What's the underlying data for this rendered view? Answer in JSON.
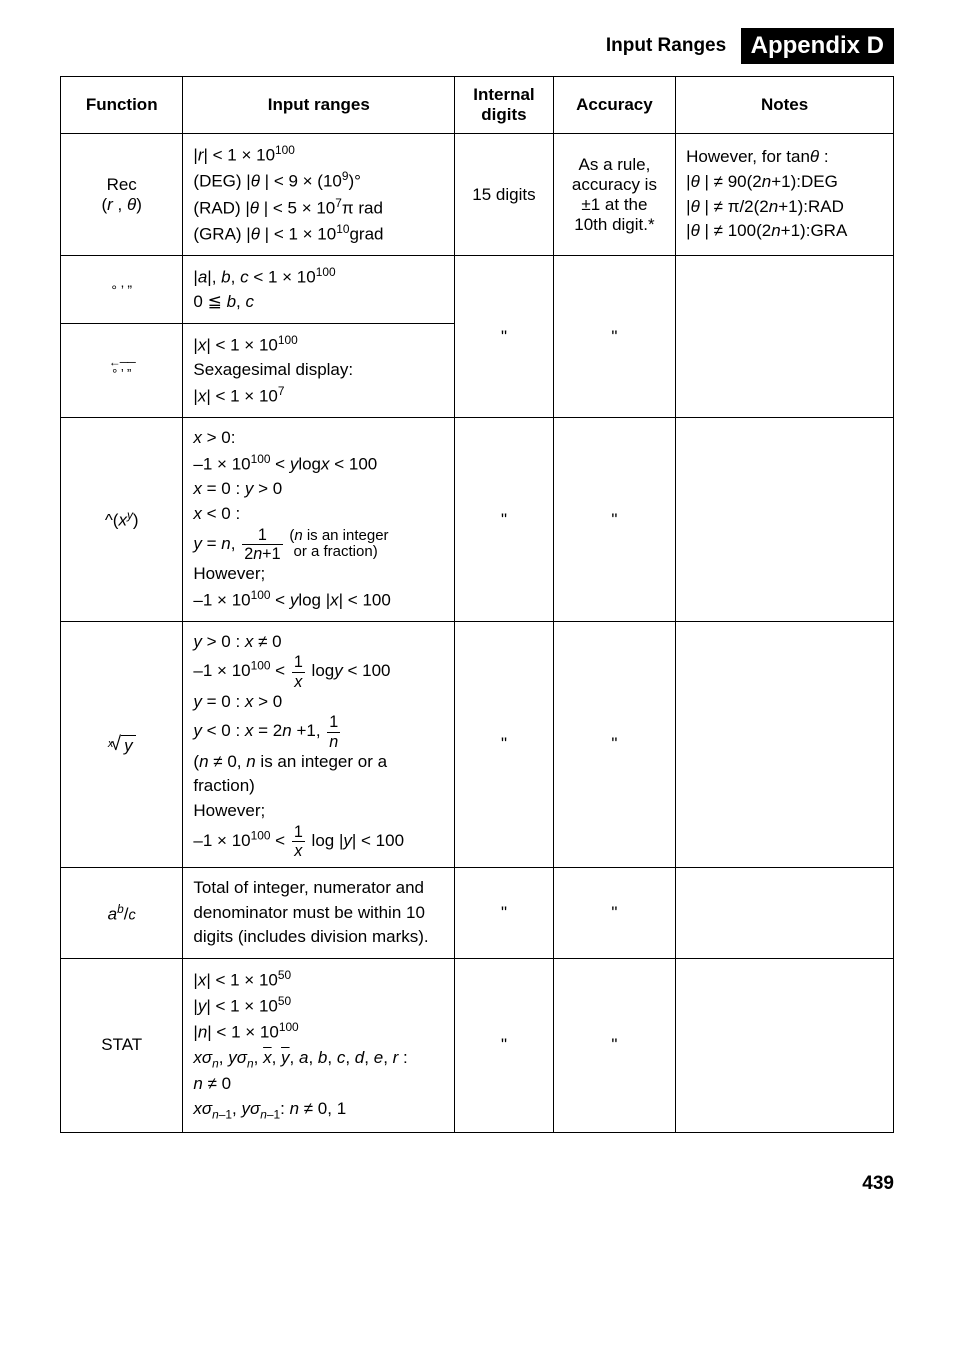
{
  "header": {
    "section_label": "Input Ranges",
    "appendix": "Appendix D"
  },
  "columns": {
    "c1": "Function",
    "c2": "Input ranges",
    "c3_line1": "Internal",
    "c3_line2": "digits",
    "c4": "Accuracy",
    "c5": "Notes"
  },
  "rows": {
    "rec": {
      "fn_line1": "Rec",
      "fn_line2_open": "(",
      "fn_line2_r": "r",
      "fn_line2_comma": " , ",
      "fn_line2_theta": "θ",
      "fn_line2_close": ")",
      "ranges": {
        "l1_a": "|",
        "l1_r": "r",
        "l1_b": "| < 1 × 10",
        "l1_exp": "100",
        "l2_a": "(DEG) |",
        "l2_th": "θ",
        "l2_b": " | < 9 × (10",
        "l2_exp": "9",
        "l2_c": ")°",
        "l3_a": "(RAD) |",
        "l3_th": "θ",
        "l3_b": " | < 5 × 10",
        "l3_exp": "7",
        "l3_c": "π rad",
        "l4_a": "(GRA) |",
        "l4_th": "θ",
        "l4_b": " | < 1 × 10",
        "l4_exp": "10",
        "l4_c": "grad"
      },
      "digits": "15 digits",
      "accuracy": {
        "l1": "As a rule,",
        "l2": "accuracy is",
        "l3": "±1 at the",
        "l4": "10th digit.*"
      },
      "notes": {
        "l1_a": "However, for tan",
        "l1_th": "θ",
        "l1_b": " :",
        "l2_a": "|",
        "l2_th": "θ",
        "l2_b": " | ≠ 90(2",
        "l2_n": "n",
        "l2_c": "+1):DEG",
        "l3_a": "|",
        "l3_th": "θ",
        "l3_b": " | ≠ π/2(2",
        "l3_n": "n",
        "l3_c": "+1):RAD",
        "l4_a": "|",
        "l4_th": "θ",
        "l4_b": " | ≠ 100(2",
        "l4_n": "n",
        "l4_c": "+1):GRA"
      }
    },
    "dms": {
      "fn": "° ’ ”",
      "ranges": {
        "l1_a": "|",
        "l1_al": "a",
        "l1_b": "|, ",
        "l1_bl": "b",
        "l1_c": ", ",
        "l1_cl": "c",
        "l1_d": " < 1 × 10",
        "l1_exp": "100",
        "l2_a": "0 ≦ ",
        "l2_b": "b",
        "l2_c": ", ",
        "l2_cl": "c"
      }
    },
    "dms_back": {
      "ranges": {
        "l1_a": "|",
        "l1_x": "x",
        "l1_b": "| < 1 × 10",
        "l1_exp": "100",
        "l2": "Sexagesimal display:",
        "l3_a": "|",
        "l3_x": "x",
        "l3_b": "| < 1 × 10",
        "l3_exp": "7"
      },
      "ditto": "\""
    },
    "pow": {
      "fn_caret": "^(",
      "fn_x": "x",
      "fn_y": "y",
      "fn_close": ")",
      "ranges": {
        "l1_x": "x",
        "l1_b": " > 0:",
        "l2_a": "–1 × 10",
        "l2_exp": "100",
        "l2_b": " < ",
        "l2_y": "y",
        "l2_log": "log",
        "l2_x": "x",
        "l2_c": " < 100",
        "l3_x": "x",
        "l3_b": " = 0 : ",
        "l3_y": "y",
        "l3_c": " > 0",
        "l4_x": "x",
        "l4_b": " < 0 :",
        "l5_y": "y",
        "l5_eq": " = ",
        "l5_n": "n",
        "l5_comma": ", ",
        "l5_num": "1",
        "l5_den_a": "2",
        "l5_den_n": "n",
        "l5_den_b": "+1",
        "l5_par1": "(",
        "l5_nn": "n",
        "l5_par2": " is an integer",
        "l5_par3": "or a fraction)",
        "l6": "However;",
        "l7_a": "–1 × 10",
        "l7_exp": "100",
        "l7_b": " < ",
        "l7_y": "y",
        "l7_log": "log |",
        "l7_x": "x",
        "l7_c": "| < 100"
      },
      "ditto": "\""
    },
    "root": {
      "fn_idx": "x",
      "fn_rad": "y",
      "ranges": {
        "l1_y": "y",
        "l1_a": " > 0 : ",
        "l1_x": "x",
        "l1_b": " ≠ 0",
        "l2_a": "–1 × 10",
        "l2_exp": "100",
        "l2_b": " < ",
        "l2_num": "1",
        "l2_den": "x",
        "l2_log": " log",
        "l2_y": "y",
        "l2_c": " < 100",
        "l3_y": "y",
        "l3_a": " = 0 : ",
        "l3_x": "x",
        "l3_b": " > 0",
        "l4_y": "y",
        "l4_a": " < 0 : ",
        "l4_x": "x",
        "l4_b": " = 2",
        "l4_n": "n",
        "l4_c": " +1, ",
        "l4_num": "1",
        "l4_den": "n",
        "l5_a": "(",
        "l5_n": "n",
        "l5_b": " ≠ 0, ",
        "l5_nn": "n",
        "l5_c": " is an integer or a",
        "l5_d": "fraction)",
        "l6": "However;",
        "l7_a": "–1 × 10",
        "l7_exp": "100",
        "l7_b": " < ",
        "l7_num": "1",
        "l7_den": "x",
        "l7_log": " log |",
        "l7_y": "y",
        "l7_c": "| < 100"
      },
      "ditto": "\""
    },
    "abc": {
      "fn_a": "a",
      "fn_b": "b",
      "fn_slash": "/",
      "fn_c": "c",
      "ranges": "Total of integer, numerator and denominator must be within 10 digits (includes division marks).",
      "ditto": "\""
    },
    "stat": {
      "fn": "STAT",
      "ranges": {
        "l1_a": "|",
        "l1_x": "x",
        "l1_b": "| < 1 × 10",
        "l1_exp": "50",
        "l2_a": "|",
        "l2_y": "y",
        "l2_b": "| < 1 × 10",
        "l2_exp": "50",
        "l3_a": "|",
        "l3_n": "n",
        "l3_b": "| < 1 × 10",
        "l3_exp": "100",
        "l4_x": "x",
        "l4_sig": "σ",
        "l4_n": "n",
        "l4_c": ", ",
        "l4_y": "y",
        "l4_sig2": "σ",
        "l4_n2": "n",
        "l4_c2": ", ",
        "l4_xb": "x",
        "l4_c3": ", ",
        "l4_yb": "y",
        "l4_c4": ", ",
        "l4_a": "a",
        "l4_c5": ", ",
        "l4_bb": "b",
        "l4_c6": ", ",
        "l4_cc": "c",
        "l4_c7": ", ",
        "l4_d": "d",
        "l4_c8": ", ",
        "l4_e": "e",
        "l4_c9": ", ",
        "l4_r": "r",
        "l4_colon": " :",
        "l5_n": "n",
        "l5_b": " ≠ 0",
        "l6_x": "x",
        "l6_sig": "σ",
        "l6_n1a": "n",
        "l6_n1b": "–1",
        "l6_c": ", ",
        "l6_y": "y",
        "l6_sig2": "σ",
        "l6_n2a": "n",
        "l6_n2b": "–1",
        "l6_colon": ": ",
        "l6_n": "n",
        "l6_b": " ≠ 0, 1"
      },
      "ditto": "\""
    }
  },
  "footer": "439"
}
